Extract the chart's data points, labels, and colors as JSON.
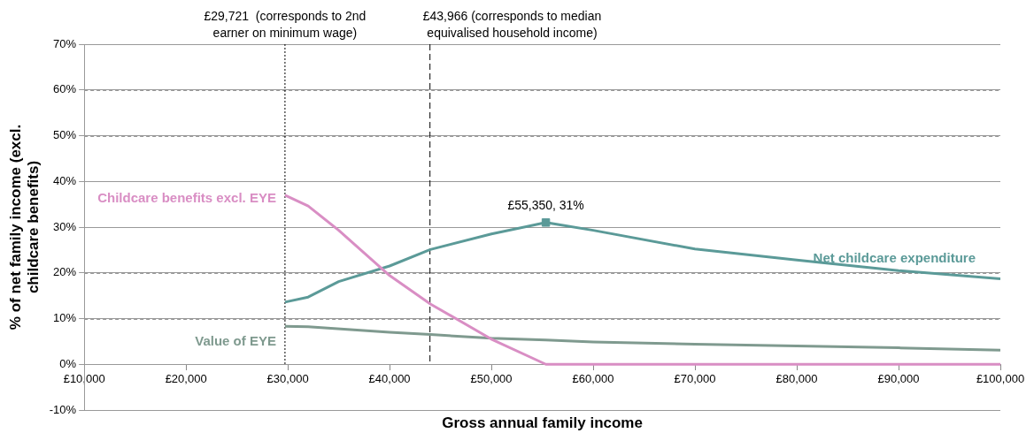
{
  "chart_data": {
    "type": "line",
    "xlabel": "Gross annual family income",
    "ylabel": "% of net family income (excl. childcare benefits)",
    "xlim": [
      10000,
      100000
    ],
    "xticks": [
      {
        "value": 10000,
        "label": "£10,000"
      },
      {
        "value": 20000,
        "label": "£20,000"
      },
      {
        "value": 30000,
        "label": "£30,000"
      },
      {
        "value": 40000,
        "label": "£40,000"
      },
      {
        "value": 50000,
        "label": "£50,000"
      },
      {
        "value": 60000,
        "label": "£60,000"
      },
      {
        "value": 70000,
        "label": "£70,000"
      },
      {
        "value": 80000,
        "label": "£80,000"
      },
      {
        "value": 90000,
        "label": "£90,000"
      },
      {
        "value": 100000,
        "label": "£100,000"
      }
    ],
    "ylim": [
      -10,
      70
    ],
    "yticks": [
      {
        "value": -10,
        "label": "-10%"
      },
      {
        "value": 0,
        "label": "0%"
      },
      {
        "value": 10,
        "label": "10%"
      },
      {
        "value": 20,
        "label": "20%"
      },
      {
        "value": 30,
        "label": "30%"
      },
      {
        "value": 40,
        "label": "40%"
      },
      {
        "value": 50,
        "label": "50%"
      },
      {
        "value": 60,
        "label": "60%"
      },
      {
        "value": 70,
        "label": "70%"
      }
    ],
    "grid": "y",
    "legend": false,
    "marker": "none",
    "series": [
      {
        "name": "Childcare benefits excl. EYE",
        "color": "#d98ec4",
        "x": [
          29721,
          32000,
          35000,
          40000,
          44000,
          50000,
          55350,
          60000,
          70000,
          80000,
          90000,
          100000
        ],
        "values": [
          37,
          34.6,
          29.3,
          19.4,
          13.2,
          5.5,
          0,
          0,
          0,
          0,
          0,
          0
        ]
      },
      {
        "name": "Net childcare expenditure",
        "color": "#5b9a98",
        "x": [
          29721,
          32000,
          35000,
          40000,
          44000,
          50000,
          55350,
          60000,
          70000,
          80000,
          90000,
          100000
        ],
        "values": [
          13.6,
          14.7,
          18.1,
          21.5,
          25.1,
          28.5,
          31,
          29.3,
          25.2,
          22.8,
          20.5,
          18.7
        ]
      },
      {
        "name": "Value of EYE",
        "color": "#7f9a8f",
        "x": [
          29721,
          32000,
          40000,
          44000,
          50000,
          55350,
          60000,
          70000,
          80000,
          90000,
          100000
        ],
        "values": [
          8.3,
          8.2,
          7,
          6.5,
          5.7,
          5.3,
          4.9,
          4.4,
          4,
          3.6,
          3.1
        ]
      },
      {
        "type": "scatter",
        "marker": "square",
        "color": "#5b9a98",
        "x": [
          55350
        ],
        "values": [
          31
        ]
      }
    ],
    "ref_lines": [
      {
        "axis": "x",
        "value": 29721,
        "label": "£29,721  (corresponds to 2nd earner on minimum wage)",
        "line_style": "dotted",
        "color": "#000000"
      },
      {
        "axis": "x",
        "value": 43966,
        "label": "£43,966 (corresponds to median equivalised household income)",
        "line_style": "dashed",
        "color": "#000000"
      }
    ],
    "annotations": [
      {
        "text": "£55,350, 31%",
        "x": 55350,
        "y": 31
      }
    ]
  }
}
